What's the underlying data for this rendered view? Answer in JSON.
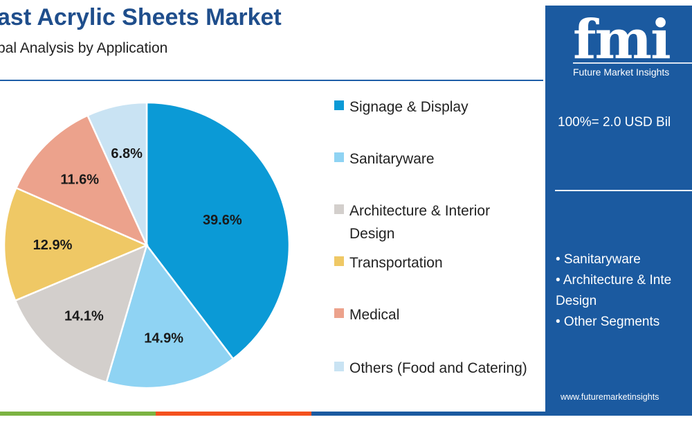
{
  "header": {
    "title": "ast Acrylic Sheets Market",
    "subtitle": "bal Analysis by Application"
  },
  "chart_data": {
    "type": "pie",
    "categories": [
      "Signage & Display",
      "Sanitaryware",
      "Architecture & Interior Design",
      "Transportation",
      "Medical",
      "Others (Food and Catering)"
    ],
    "values": [
      39.6,
      14.9,
      14.1,
      12.9,
      11.6,
      6.8
    ],
    "data_labels": [
      "39.6%",
      "14.9%",
      "14.1%",
      "12.9%",
      "11.6%",
      "6.8%"
    ],
    "colors": [
      "#0b9ad6",
      "#8fd3f3",
      "#d3cfcc",
      "#efc865",
      "#eca28c",
      "#c9e3f3"
    ],
    "legend_placement": "right"
  },
  "sidebar": {
    "logo_text": "fmi",
    "logo_caption": "Future Market Insights",
    "total": "100%= 2.0 USD Bil",
    "segments": [
      "• Sanitaryware",
      "• Architecture & Inte",
      "Design",
      "• Other Segments"
    ],
    "url": "www.futuremarketinsights"
  },
  "colors": {
    "title": "#1f4e8c",
    "sidebar_bg": "#1b5aa0",
    "divider": "#1f5ea8"
  }
}
